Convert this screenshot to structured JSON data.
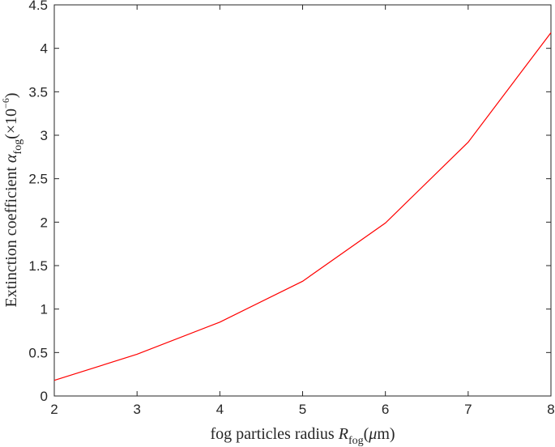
{
  "chart_data": {
    "type": "line",
    "title": "",
    "xlabel": {
      "prefix": "fog particles radius ",
      "symbol": "R",
      "subscript": "fog",
      "unit_open": "(",
      "unit_mu": "μ",
      "unit_rest": "m)"
    },
    "ylabel": {
      "prefix": "Extinction coefficient ",
      "symbol": "α",
      "subscript": "fog",
      "factor_open": "(×10",
      "exponent": "−6",
      "factor_close": ")"
    },
    "xlim": [
      2,
      8
    ],
    "ylim": [
      0,
      4.5
    ],
    "x_ticks": [
      "2",
      "3",
      "4",
      "5",
      "6",
      "7",
      "8"
    ],
    "y_ticks": [
      "0",
      "0.5",
      "1",
      "1.5",
      "2",
      "2.5",
      "3",
      "3.5",
      "4",
      "4.5"
    ],
    "grid": false,
    "legend": "none",
    "series": [
      {
        "color": "#ff0000",
        "x": [
          2,
          3,
          4,
          5,
          6,
          7,
          8
        ],
        "y": [
          0.18,
          0.48,
          0.85,
          1.32,
          1.99,
          2.92,
          4.18
        ]
      }
    ]
  }
}
